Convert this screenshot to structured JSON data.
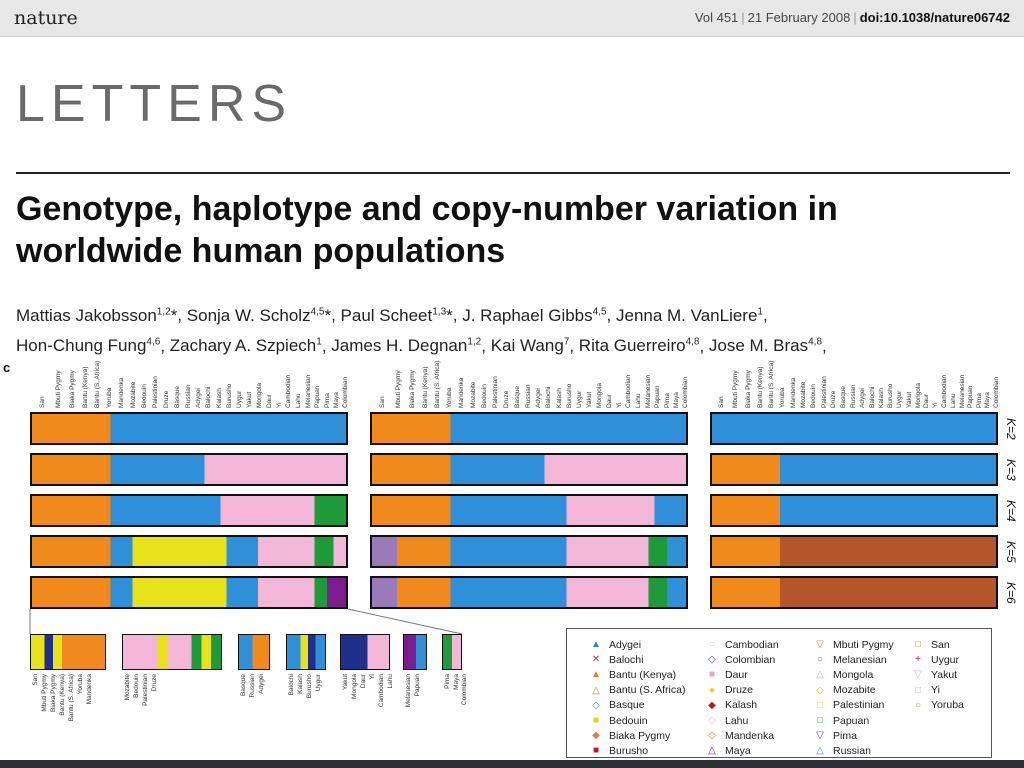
{
  "header": {
    "brand": "nature",
    "volume": "Vol 451",
    "date": "21 February 2008",
    "doi": "doi:10.1038/nature06742"
  },
  "section_label": "LETTERS",
  "title": "Genotype, haplotype and copy-number variation in worldwide human populations",
  "authors": [
    {
      "name": "Mattias Jakobsson",
      "sup": "1,2",
      "mark": "*"
    },
    {
      "name": "Sonja W. Scholz",
      "sup": "4,5",
      "mark": "*"
    },
    {
      "name": "Paul Scheet",
      "sup": "1,3",
      "mark": "*"
    },
    {
      "name": "J. Raphael Gibbs",
      "sup": "4,5",
      "mark": ""
    },
    {
      "name": "Jenna M. VanLiere",
      "sup": "1",
      "mark": ""
    },
    {
      "name": "Hon-Chung Fung",
      "sup": "4,6",
      "mark": ""
    },
    {
      "name": "Zachary A. Szpiech",
      "sup": "1",
      "mark": ""
    },
    {
      "name": "James H. Degnan",
      "sup": "1,2",
      "mark": ""
    },
    {
      "name": "Kai Wang",
      "sup": "7",
      "mark": ""
    },
    {
      "name": "Rita Guerreiro",
      "sup": "4,8",
      "mark": ""
    },
    {
      "name": "Jose M. Bras",
      "sup": "4,8",
      "mark": ""
    }
  ],
  "figure": {
    "panel_letter": "c",
    "population_order": [
      "San",
      "Mbuti Pygmy",
      "Biaka Pygmy",
      "Bantu (Kenya)",
      "Bantu (S. Africa)",
      "Yoruba",
      "Mandenka",
      "Mozabite",
      "Bedouin",
      "Palestinian",
      "Druze",
      "Basque",
      "Russian",
      "Adygei",
      "Balochi",
      "Kalash",
      "Burusho",
      "Uygur",
      "Yakut",
      "Mongola",
      "Daur",
      "Yi",
      "Cambodian",
      "Lahu",
      "Melanesian",
      "Papuan",
      "Pima",
      "Maya",
      "Colombian"
    ],
    "k_labels": [
      "K=2",
      "K=3",
      "K=4",
      "K=5",
      "K=6"
    ],
    "zoom_groups": [
      [
        "San",
        "Mbuti Pygmy",
        "Biaka Pygmy",
        "Bantu (Kenya)",
        "Bantu (S. Africa)",
        "Yoruba",
        "Mandenka"
      ],
      [
        "Mozabite",
        "Bedouin",
        "Palestinian",
        "Druze"
      ],
      [
        "Basque",
        "Russian",
        "Adygei"
      ],
      [
        "Balochi",
        "Kalash",
        "Burusho",
        "Uygur"
      ],
      [
        "Yakut",
        "Mongola",
        "Daur",
        "Yi",
        "Cambodian",
        "Lahu"
      ],
      [
        "Melanesian",
        "Papuan"
      ],
      [
        "Pima",
        "Maya",
        "Colombian"
      ]
    ],
    "colors": {
      "orange": "#f08a1c",
      "blue": "#2f8fd8",
      "pink": "#f2b6d6",
      "green": "#1f9a3a",
      "yellow": "#e8e21a",
      "purple": "#7b1b8c",
      "navy": "#1f2f8a",
      "lilac": "#9a7ab8",
      "rust": "#b5562a"
    }
  },
  "legend": {
    "columns": [
      [
        {
          "label": "Adygei",
          "symbol": "▲",
          "color": "#2a7fd0"
        },
        {
          "label": "Balochi",
          "symbol": "✕",
          "color": "#c0303a"
        },
        {
          "label": "Bantu (Kenya)",
          "symbol": "▲",
          "color": "#e07a20"
        },
        {
          "label": "Bantu (S. Africa)",
          "symbol": "△",
          "color": "#e07a20"
        },
        {
          "label": "Basque",
          "symbol": "◇",
          "color": "#2a9ad0"
        },
        {
          "label": "Bedouin",
          "symbol": "■",
          "color": "#e6d21a"
        },
        {
          "label": "Biaka Pygmy",
          "symbol": "◆",
          "color": "#e07a50"
        },
        {
          "label": "Burusho",
          "symbol": "■",
          "color": "#c8102e"
        }
      ],
      [
        {
          "label": "Cambodian",
          "symbol": "○",
          "color": "#f0a0c8"
        },
        {
          "label": "Colombian",
          "symbol": "◇",
          "color": "#7b2a8c"
        },
        {
          "label": "Daur",
          "symbol": "■",
          "color": "#f0a0c8"
        },
        {
          "label": "Druze",
          "symbol": "●",
          "color": "#e6d21a"
        },
        {
          "label": "Kalash",
          "symbol": "◆",
          "color": "#c8102e"
        },
        {
          "label": "Lahu",
          "symbol": "◇",
          "color": "#f0b0d0"
        },
        {
          "label": "Mandenka",
          "symbol": "◇",
          "color": "#e08a30"
        },
        {
          "label": "Maya",
          "symbol": "△",
          "color": "#7b2a8c"
        }
      ],
      [
        {
          "label": "Mbuti Pygmy",
          "symbol": "▽",
          "color": "#e08a30"
        },
        {
          "label": "Melanesian",
          "symbol": "○",
          "color": "#1f9a3a"
        },
        {
          "label": "Mongola",
          "symbol": "△",
          "color": "#f0a0c8"
        },
        {
          "label": "Mozabite",
          "symbol": "◇",
          "color": "#e6c81a"
        },
        {
          "label": "Palestinian",
          "symbol": "□",
          "color": "#e6d21a"
        },
        {
          "label": "Papuan",
          "symbol": "□",
          "color": "#1f9a3a"
        },
        {
          "label": "Pima",
          "symbol": "▽",
          "color": "#7b2a8c"
        },
        {
          "label": "Russian",
          "symbol": "△",
          "color": "#2a9ad0"
        }
      ],
      [
        {
          "label": "San",
          "symbol": "□",
          "color": "#e08a30"
        },
        {
          "label": "Uygur",
          "symbol": "+",
          "color": "#c8102e"
        },
        {
          "label": "Yakut",
          "symbol": "▽",
          "color": "#f0a0c8"
        },
        {
          "label": "Yi",
          "symbol": "□",
          "color": "#f0a0c8"
        },
        {
          "label": "Yoruba",
          "symbol": "○",
          "color": "#e08a30"
        }
      ]
    ]
  }
}
